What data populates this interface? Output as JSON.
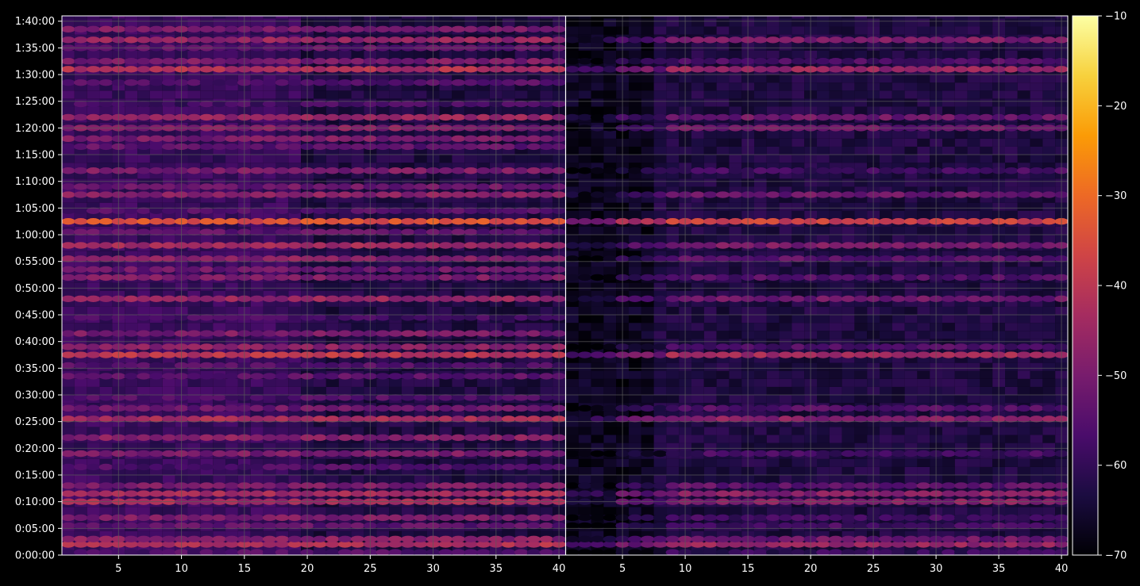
{
  "chart_data": {
    "type": "heatmap",
    "title": "",
    "xlabel": "",
    "ylabel": "",
    "grid": true,
    "colormap": "inferno",
    "colors": {
      "background": "#000000",
      "grid": "#5a5a5a",
      "axes": "#ffffff",
      "colormap_stops": [
        "#000004",
        "#1b0c41",
        "#4a0c6b",
        "#781c6d",
        "#a52c60",
        "#cf4446",
        "#ed6925",
        "#fb9b06",
        "#f7d13d",
        "#fcffa4"
      ]
    },
    "y_ticks": [
      "0:00:00",
      "0:05:00",
      "0:10:00",
      "0:15:00",
      "0:20:00",
      "0:25:00",
      "0:30:00",
      "0:35:00",
      "0:40:00",
      "0:45:00",
      "0:50:00",
      "0:55:00",
      "1:00:00",
      "1:05:00",
      "1:10:00",
      "1:15:00",
      "1:20:00",
      "1:25:00",
      "1:30:00",
      "1:35:00",
      "1:40:00"
    ],
    "y_range_minutes": [
      0,
      101
    ],
    "panels": [
      {
        "x_range": [
          1,
          40
        ],
        "x_ticks": [
          "5",
          "10",
          "15",
          "20",
          "25",
          "30",
          "35",
          "40"
        ],
        "band_intensity": {
          "0.5": -56,
          "2": -42,
          "3": -48,
          "5.5": -54,
          "7": -50,
          "10": -44,
          "11.5": -44,
          "13": -50,
          "16.5": -56,
          "19": -50,
          "22": -48,
          "25.5": -44,
          "27.5": -52,
          "29.5": -56,
          "33.5": -54,
          "35.5": -56,
          "37.5": -40,
          "39": -48,
          "41.5": -50,
          "44.5": -58,
          "48": -46,
          "52": -50,
          "53.5": -52,
          "55.5": -48,
          "58": -44,
          "60.5": -54,
          "62.5": -34,
          "64.5": -56,
          "67.5": -48,
          "69": -52,
          "72": -50,
          "76.5": -54,
          "78": -50,
          "80": -48,
          "82": -46,
          "84.5": -58,
          "88.5": -56,
          "91": -42,
          "92.5": -50,
          "95": -54,
          "96.5": -46,
          "98.5": -50
        }
      },
      {
        "x_range": [
          1,
          40
        ],
        "x_ticks": [
          "5",
          "10",
          "15",
          "20",
          "25",
          "30",
          "35",
          "40"
        ],
        "band_intensity": {
          "0.5": -60,
          "2": -46,
          "3": -52,
          "5.5": -58,
          "7": -58,
          "10": -48,
          "11.5": -48,
          "13": -54,
          "19": -58,
          "25.5": -48,
          "27.5": -56,
          "37.5": -44,
          "39": -56,
          "48": -52,
          "52": -56,
          "55.5": -54,
          "58": -50,
          "62.5": -38,
          "67.5": -52,
          "72": -58,
          "80": -52,
          "82": -52,
          "91": -46,
          "92.5": -56,
          "96.5": -50
        }
      }
    ],
    "colorbar": {
      "range": [
        -70,
        -10
      ],
      "tick_labels": [
        "−10",
        "−20",
        "−30",
        "−40",
        "−50",
        "−60",
        "−70"
      ],
      "tick_values": [
        -10,
        -20,
        -30,
        -40,
        -50,
        -60,
        -70
      ]
    }
  }
}
